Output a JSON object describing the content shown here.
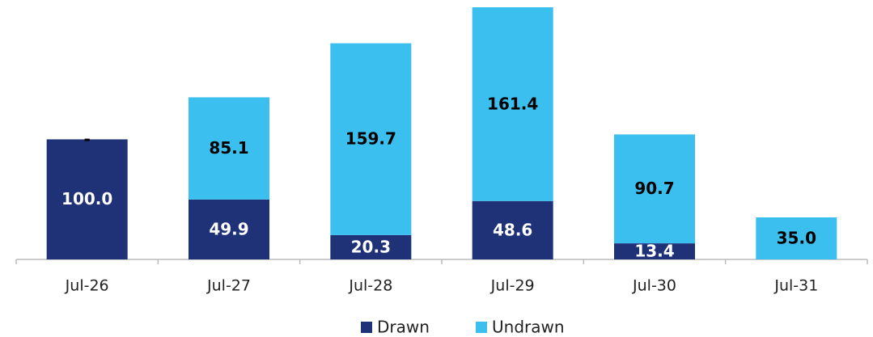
{
  "chart_data": {
    "type": "stacked-bar",
    "categories": [
      "Jul-26",
      "Jul-27",
      "Jul-28",
      "Jul-29",
      "Jul-30",
      "Jul-31"
    ],
    "series": [
      {
        "name": "Drawn",
        "color": "#1f3277",
        "label_color": "#ffffff",
        "values": [
          100.0,
          49.9,
          20.3,
          48.6,
          13.4,
          0
        ],
        "value_labels": [
          "100.0",
          "49.9",
          "20.3",
          "48.6",
          "13.4",
          null
        ]
      },
      {
        "name": "Undrawn",
        "color": "#3bbfef",
        "label_color": "#000000",
        "values": [
          0,
          85.1,
          159.7,
          161.4,
          90.7,
          35.0
        ],
        "value_labels": [
          "-",
          "85.1",
          "159.7",
          "161.4",
          "90.7",
          "35.0"
        ]
      }
    ],
    "ylim": [
      0,
      210
    ]
  }
}
